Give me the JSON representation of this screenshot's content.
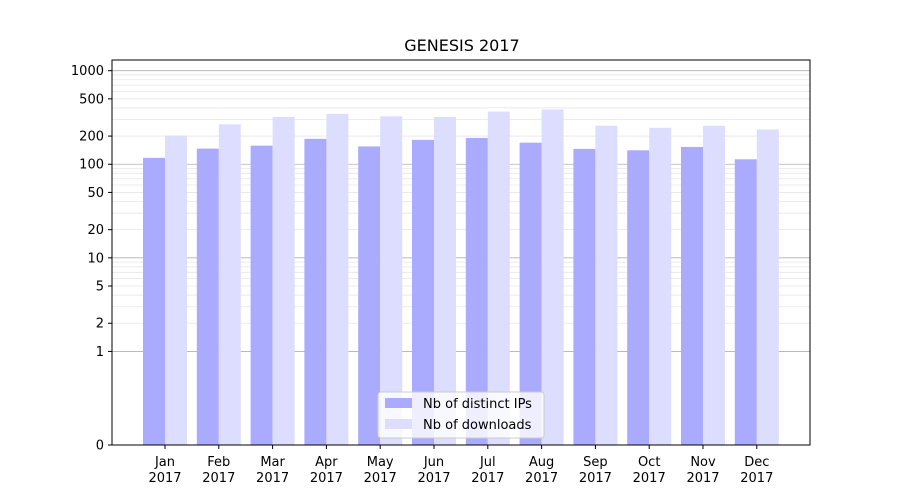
{
  "chart_data": {
    "type": "bar",
    "title": "GENESIS 2017",
    "xlabel": "",
    "ylabel": "",
    "yscale": "symlog",
    "ylim": [
      0,
      1300
    ],
    "yticks": [
      0,
      1,
      2,
      5,
      10,
      20,
      50,
      100,
      200,
      500,
      1000
    ],
    "categories": [
      {
        "month": "Jan",
        "year": "2017"
      },
      {
        "month": "Feb",
        "year": "2017"
      },
      {
        "month": "Mar",
        "year": "2017"
      },
      {
        "month": "Apr",
        "year": "2017"
      },
      {
        "month": "May",
        "year": "2017"
      },
      {
        "month": "Jun",
        "year": "2017"
      },
      {
        "month": "Jul",
        "year": "2017"
      },
      {
        "month": "Aug",
        "year": "2017"
      },
      {
        "month": "Sep",
        "year": "2017"
      },
      {
        "month": "Oct",
        "year": "2017"
      },
      {
        "month": "Nov",
        "year": "2017"
      },
      {
        "month": "Dec",
        "year": "2017"
      }
    ],
    "series": [
      {
        "name": "Nb of distinct IPs",
        "color": "#aaaaff",
        "values": [
          117,
          147,
          158,
          187,
          155,
          182,
          191,
          170,
          146,
          141,
          153,
          113
        ]
      },
      {
        "name": "Nb of downloads",
        "color": "#ddddff",
        "values": [
          202,
          267,
          320,
          345,
          325,
          320,
          365,
          385,
          258,
          245,
          258,
          235
        ]
      }
    ],
    "grid": true,
    "legend_position": "bottom-center"
  }
}
